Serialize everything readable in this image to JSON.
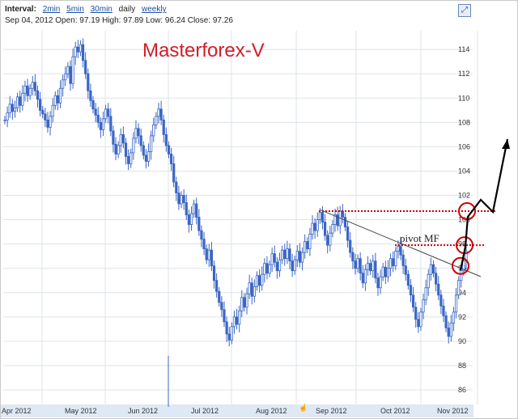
{
  "toolbar": {
    "interval_label": "Interval:",
    "intervals": [
      "2min",
      "5min",
      "30min",
      "daily",
      "weekly"
    ],
    "selected_interval": "daily",
    "ohlc_text": "Sep 04, 2012 Open: 97.19 High: 97.89 Low: 96.24 Close: 97.26",
    "expand_icon": "expand-icon"
  },
  "annotations": {
    "brand": "Masterforex-V",
    "pivot_label": "pivot MF"
  },
  "colors": {
    "candle": "#3a66c4",
    "grid": "#dde3ea",
    "axis_band": "#dfe8f5",
    "dotted": "#cc0000",
    "circle": "#cc0000",
    "trend": "#444444",
    "arrow": "#000000"
  },
  "chart_data": {
    "type": "candlestick",
    "title": "",
    "xlabel": "",
    "ylabel": "",
    "ylim": [
      84,
      116
    ],
    "grid": true,
    "y_ticks": [
      86,
      88,
      90,
      92,
      94,
      96,
      98,
      100,
      102,
      104,
      106,
      108,
      110,
      112,
      114
    ],
    "x_ticks": [
      "Apr 2012",
      "May 2012",
      "Jun 2012",
      "Jul 2012",
      "Aug 2012",
      "Sep 2012",
      "Oct 2012",
      "Nov 2012"
    ],
    "series": [
      {
        "name": "",
        "values": [
          108.2,
          108.8,
          109.5,
          108.9,
          109.2,
          110.1,
          109.4,
          110.4,
          111.0,
          110.2,
          110.8,
          111.3,
          110.6,
          109.9,
          109.0,
          108.7,
          108.2,
          107.6,
          108.5,
          109.4,
          110.2,
          109.6,
          110.8,
          111.5,
          112.0,
          112.6,
          111.2,
          113.4,
          114.2,
          113.8,
          114.4,
          113.1,
          112.0,
          110.6,
          109.8,
          109.1,
          108.6,
          108.0,
          107.4,
          108.3,
          109.1,
          108.5,
          107.3,
          106.2,
          105.4,
          106.1,
          107.0,
          106.3,
          105.2,
          104.6,
          105.5,
          106.7,
          107.5,
          106.9,
          106.1,
          105.3,
          104.8,
          105.6,
          106.9,
          107.8,
          108.5,
          109.1,
          108.2,
          107.0,
          106.1,
          105.4,
          104.6,
          103.1,
          102.2,
          101.3,
          102.0,
          101.4,
          100.4,
          99.6,
          100.5,
          101.3,
          100.2,
          99.1,
          98.4,
          97.6,
          96.7,
          97.5,
          96.2,
          95.0,
          94.1,
          93.2,
          92.6,
          91.6,
          90.6,
          90.1,
          91.2,
          92.0,
          91.4,
          92.5,
          93.6,
          92.8,
          93.9,
          94.8,
          93.7,
          94.5,
          95.4,
          94.6,
          95.5,
          96.4,
          95.6,
          96.3,
          97.2,
          96.5,
          95.8,
          96.7,
          97.5,
          96.8,
          97.6,
          96.6,
          95.8,
          96.7,
          97.4,
          96.5,
          97.3,
          98.2,
          97.6,
          98.8,
          99.7,
          99.1,
          100.0,
          100.6,
          99.8,
          98.7,
          97.9,
          98.9,
          99.6,
          100.4,
          99.5,
          100.7,
          100.2,
          99.4,
          98.3,
          97.3,
          96.6,
          96.0,
          96.8,
          95.6,
          94.8,
          95.9,
          96.4,
          95.8,
          96.6,
          95.2,
          94.4,
          95.3,
          96.1,
          95.3,
          96.0,
          96.8,
          96.2,
          97.4,
          97.8,
          97.1,
          96.2,
          95.5,
          94.6,
          93.8,
          92.8,
          91.8,
          91.2,
          92.4,
          93.4,
          94.4,
          95.5,
          96.3,
          95.6,
          94.7,
          93.8,
          92.9,
          92.1,
          91.1,
          90.4,
          91.5,
          92.4,
          93.8,
          95.0,
          95.8,
          96.6,
          97.4
        ]
      }
    ],
    "annotations": {
      "trend_line": [
        [
          100.8,
          95.9
        ]
      ],
      "dotted_levels": [
        100.7,
        97.9
      ],
      "circles": [
        100.7,
        97.9,
        96.2
      ]
    }
  }
}
